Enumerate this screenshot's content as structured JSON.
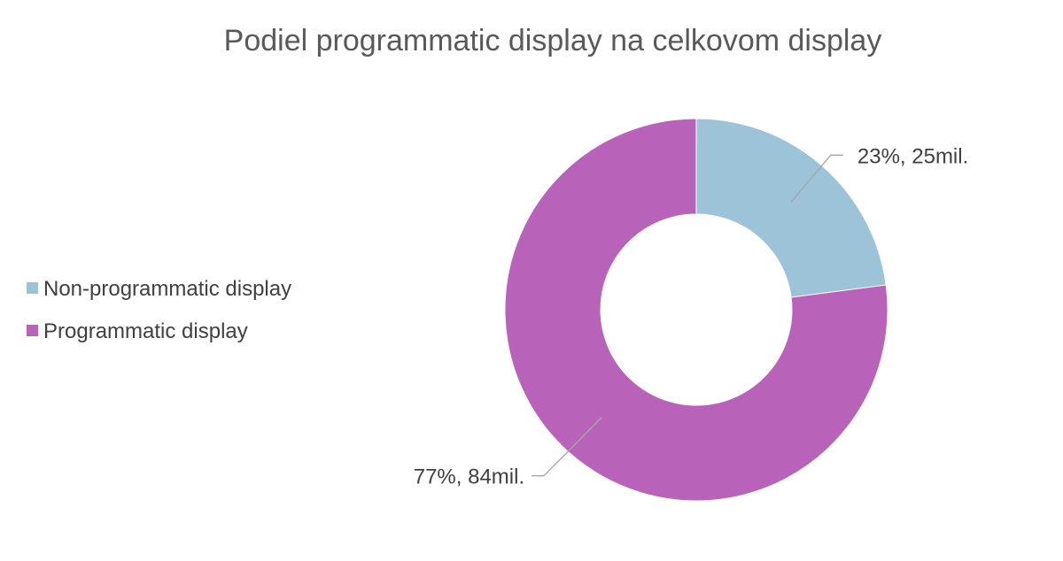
{
  "chart_data": {
    "type": "pie",
    "variant": "donut",
    "title": "Podiel programmatic display na celkovom display",
    "legend_position": "left",
    "series": [
      {
        "name": "Non-programmatic display",
        "value": 25,
        "percent": 23,
        "label": "23%, 25mil.",
        "color": "#9dc3d9"
      },
      {
        "name": "Programmatic display",
        "value": 84,
        "percent": 77,
        "label": "77%, 84mil.",
        "color": "#b962b9"
      }
    ]
  }
}
